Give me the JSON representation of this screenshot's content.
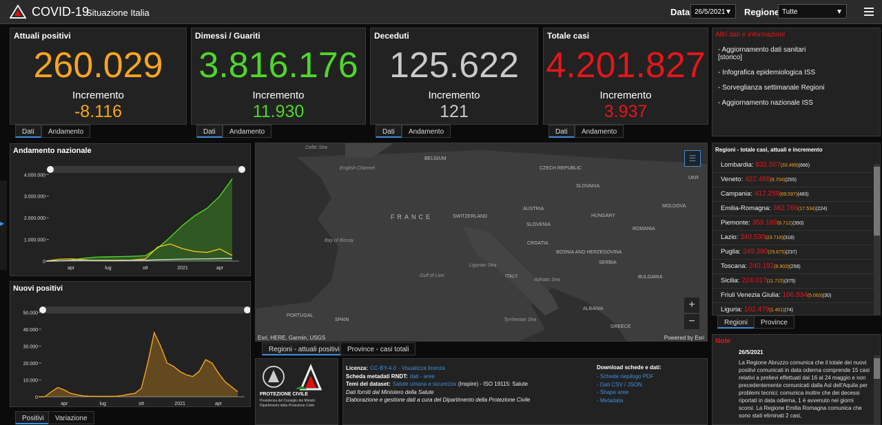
{
  "header": {
    "title": "COVID-19",
    "subtitle": "Situazione Italia",
    "date_label": "Data",
    "date": "26/5/2021",
    "region_label": "Regione",
    "region": "Tutte"
  },
  "cards": [
    {
      "title": "Attuali positivi",
      "value": "260.029",
      "increment_label": "Incremento",
      "increment": "-8.116",
      "color": "#f7a51f",
      "tabs": [
        "Dati",
        "Andamento"
      ]
    },
    {
      "title": "Dimessi / Guariti",
      "value": "3.816.176",
      "increment_label": "Incremento",
      "increment": "11.930",
      "color": "#4fd629",
      "tabs": [
        "Dati",
        "Andamento"
      ]
    },
    {
      "title": "Deceduti",
      "value": "125.622",
      "increment_label": "Incremento",
      "increment": "121",
      "color": "#c9c9c9",
      "tabs": [
        "Dati",
        "Andamento"
      ]
    },
    {
      "title": "Totale casi",
      "value": "4.201.827",
      "increment_label": "Incremento",
      "increment": "3.937",
      "color": "#e3161b",
      "tabs": [
        "Dati",
        "Andamento"
      ]
    }
  ],
  "info": {
    "title": "Altri dati e informazioni",
    "links": [
      "- Aggiornamento dati sanitari\n [storico]",
      "- Infografica epidemiologica ISS",
      "- Sorveglianza settimanale Regioni",
      "- Aggiornamento nazionale ISS"
    ]
  },
  "charts": [
    {
      "type": "line",
      "title": "Andamento nazionale",
      "categories": [
        null,
        null,
        "apr",
        null,
        null,
        "lug",
        null,
        null,
        "ott",
        null,
        null,
        "2021",
        null,
        null,
        "apr",
        null
      ],
      "series": [
        {
          "color": "#4fd629",
          "area": true,
          "values": [
            0,
            1000,
            40000,
            130000,
            180000,
            195000,
            205000,
            220000,
            250000,
            600000,
            1100000,
            1650000,
            2100000,
            2450000,
            3000000,
            3800000
          ]
        },
        {
          "color": "#f2c21b",
          "area": false,
          "values": [
            0,
            80000,
            105000,
            60000,
            20000,
            13000,
            20000,
            50000,
            100000,
            650000,
            790000,
            570000,
            440000,
            400000,
            560000,
            260000
          ]
        },
        {
          "color": "#d0d0d0",
          "area": false,
          "values": [
            0,
            12000,
            28000,
            33000,
            35000,
            35100,
            35400,
            36000,
            38000,
            60000,
            75000,
            88000,
            97000,
            105000,
            115000,
            125000
          ]
        }
      ],
      "ylim": [
        0,
        4200000
      ],
      "yticks": [
        0,
        {
          "value": 1000000,
          "label": "1.000.000"
        },
        {
          "value": 2000000,
          "label": "2.000.000"
        },
        {
          "value": 3000000,
          "label": "3.000.000"
        },
        {
          "value": 4000000,
          "label": "4.000.000"
        }
      ]
    },
    {
      "type": "line",
      "title": "Nuovi positivi",
      "categories": [
        null,
        null,
        null,
        null,
        "apr",
        null,
        null,
        null,
        null,
        null,
        "lug",
        null,
        null,
        null,
        null,
        null,
        "ott",
        null,
        null,
        null,
        null,
        null,
        "2021",
        null,
        null,
        null,
        null,
        null,
        "apr",
        null,
        null,
        null
      ],
      "series": [
        {
          "color": "#f7a51f",
          "area": true,
          "values": [
            0,
            100,
            3000,
            5500,
            4000,
            2000,
            1200,
            500,
            300,
            250,
            200,
            250,
            300,
            700,
            1500,
            2000,
            5000,
            20000,
            38000,
            30000,
            20000,
            18000,
            15000,
            13000,
            12000,
            15000,
            22000,
            20000,
            14000,
            9000,
            6000,
            3000
          ]
        }
      ],
      "ylim": [
        0,
        51000
      ],
      "yticks": [
        0,
        {
          "value": 10000,
          "label": "10.000"
        },
        {
          "value": 20000,
          "label": "20.000"
        },
        {
          "value": 30000,
          "label": "30.000"
        },
        {
          "value": 40000,
          "label": "40.000"
        },
        {
          "value": 50000,
          "label": "50.000"
        }
      ],
      "tabs": [
        "Positivi",
        "Variazione"
      ]
    }
  ],
  "map": {
    "labels": [
      "Celtic Sea",
      "BELGIUM",
      "English Channel",
      "CZECH REPUBLIC",
      "UKR",
      "SLOVAKIA",
      "FRANCE",
      "SWITZERLAND",
      "AUSTRIA",
      "HUNGARY",
      "MOLDOVA",
      "SLOVENIA",
      "ROMANIA",
      "Bay of Biscay",
      "CROATIA",
      "BOSNIA AND HERZEGOVINA",
      "SERBIA",
      "Ligurian Sea",
      "ITALY",
      "Adriatic Sea",
      "BULGARIA",
      "Gulf of Lion",
      "PORTUGAL",
      "SPAIN",
      "Tyrrhenian Sea",
      "ALBANIA",
      "GREECE"
    ],
    "attribution": "Esri, HERE, Garmin, USGS",
    "powered": "Powered by Esri",
    "tabs": [
      "Regioni - attuali positivi",
      "Province - casi totali"
    ]
  },
  "regions": {
    "title": "Regioni - totale casi, attuali e incremento",
    "rows": [
      [
        "Lombardia:",
        "832.507",
        "(33.499)",
        "(666)"
      ],
      [
        "Veneto:",
        "422.488",
        "(9.704)",
        "(255)"
      ],
      [
        "Campania:",
        "417.259",
        "(69.597)",
        "(483)"
      ],
      [
        "Emilia-Romagna:",
        "382.766",
        "(17.534)",
        "(224)"
      ],
      [
        "Piemonte:",
        "359.189",
        "(6.712)",
        "(350)"
      ],
      [
        "Lazio:",
        "340.530",
        "(23.718)",
        "(318)"
      ],
      [
        "Puglia:",
        "249.380",
        "(29.675)",
        "(237)"
      ],
      [
        "Toscana:",
        "240.192",
        "(9.903)",
        "(258)"
      ],
      [
        "Sicilia:",
        "224.017",
        "(11.715)",
        "(375)"
      ],
      [
        "Friuli Venezia Giulia:",
        "106.834",
        "(5.063)",
        "(30)"
      ],
      [
        "Liguria:",
        "102.479",
        "(1.401)",
        "(74)"
      ]
    ],
    "tabs": [
      "Regioni",
      "Province"
    ]
  },
  "logo": {
    "name": "PROTEZIONE CIVILE",
    "line1": "Presidenza del Consiglio dei Ministri",
    "line2": "Dipartimento della Protezione Civile"
  },
  "license": [
    [
      {
        "text": "Licenza:",
        "style": "bold"
      },
      {
        "text": "CC-BY-4.0",
        "style": "link"
      },
      {
        "text": "- Visualizza licenza",
        "style": "link"
      }
    ],
    [
      {
        "text": "Scheda metadati RNDT:",
        "style": "bold"
      },
      {
        "text": "dati - aree",
        "style": "link"
      }
    ],
    [
      {
        "text": "Temi del dataset:",
        "style": "bold"
      },
      {
        "text": "Salute umana e sicurezza",
        "style": "link"
      },
      {
        "text": "(Inspire) - ISO 19115: Salute",
        "style": "plain"
      }
    ],
    [
      {
        "text": "Dati forniti dal Ministero della Salute",
        "style": "italic"
      }
    ],
    [
      {
        "text": "Elaborazione e gestione dati a cura del Dipartimento della Protezione Civile",
        "style": "italic"
      }
    ]
  ],
  "downloads": {
    "title": "Download schede e dati:",
    "links": [
      "- Schede riepilogo PDF",
      "- Dati CSV / JSON",
      "- Shape aree",
      "- Metadata"
    ]
  },
  "note": {
    "title": "Note",
    "date": "26/5/2021",
    "text": "La Regione Abruzzo comunica che il totale dei nuovi positivi comunicati in data odierna comprende 15 casi relativi a prelievi effettuati dal 16 al 24 maggio e non precedentemente comunicati dalla Asl dell'Aquila per problemi tecnici; comunica inoltre che dei decessi riportati in data odierna, 1 è avvenuto nei giorni scorsi. La Regione Emilia Romagna comunica che sono stati eliminati 2 casi,"
  }
}
